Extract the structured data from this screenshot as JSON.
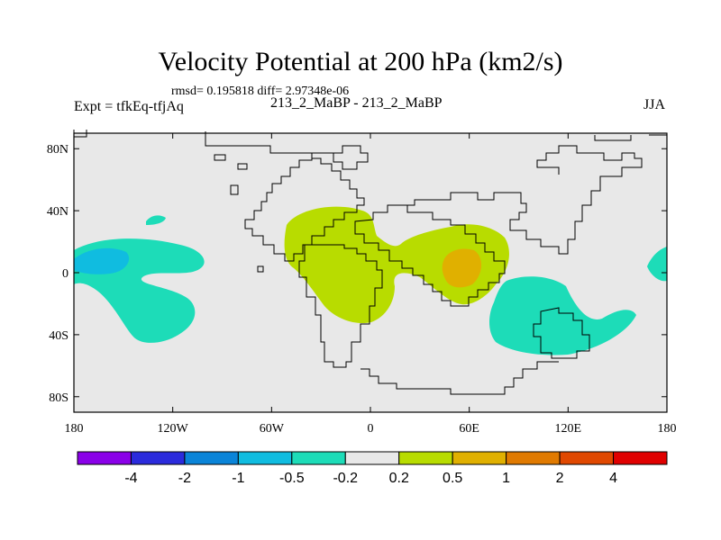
{
  "title": "Velocity Potential at 200 hPa (km2/s)",
  "stats_text": "rmsd= 0.195818 diff= 2.97348e-06",
  "left_label": "Expt = tfkEq-tfjAq",
  "center_label": "213_2_MaBP - 213_2_MaBP",
  "right_label": "JJA",
  "map": {
    "lat_ticks": [
      {
        "label": "80N",
        "lat": 80
      },
      {
        "label": "40N",
        "lat": 40
      },
      {
        "label": "0",
        "lat": 0
      },
      {
        "label": "40S",
        "lat": -40
      },
      {
        "label": "80S",
        "lat": -80
      }
    ],
    "lon_ticks": [
      {
        "label": "180",
        "lon": -180
      },
      {
        "label": "120W",
        "lon": -120
      },
      {
        "label": "60W",
        "lon": -60
      },
      {
        "label": "0",
        "lon": 0
      },
      {
        "label": "60E",
        "lon": 60
      },
      {
        "label": "120E",
        "lon": 120
      },
      {
        "label": "180",
        "lon": 180
      }
    ],
    "background_color": "#e8e8e8"
  },
  "colorbar": {
    "boxes": [
      "#8a00e8",
      "#2b2bdc",
      "#0a84d8",
      "#10bce0",
      "#1ddcb8",
      "#e8e8e8",
      "#b8dc00",
      "#e0b000",
      "#e07a00",
      "#e04800",
      "#e00000"
    ],
    "labels": [
      "-4",
      "-2",
      "-1",
      "-0.5",
      "-0.2",
      "0.2",
      "0.5",
      "1",
      "2",
      "4"
    ]
  }
}
